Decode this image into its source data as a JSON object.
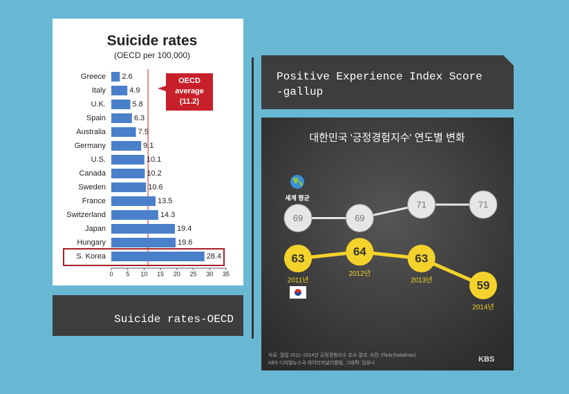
{
  "captions": [
    "Suicide rates-OECD",
    "Positive Experience Index Score\n-gallup"
  ],
  "chart_data": [
    {
      "type": "hbar",
      "title": "Suicide rates",
      "subtitle": "(OECD per 100,000)",
      "categories": [
        "Greece",
        "Italy",
        "U.K.",
        "Spain",
        "Australia",
        "Germany",
        "U.S.",
        "Canada",
        "Sweden",
        "France",
        "Switzerland",
        "Japan",
        "Hungary",
        "S. Korea"
      ],
      "values": [
        2.6,
        4.9,
        5.8,
        6.3,
        7.5,
        9.1,
        10.1,
        10.2,
        10.6,
        13.5,
        14.3,
        19.4,
        19.6,
        28.4
      ],
      "color": "#4a80c9",
      "xlim": [
        0,
        35
      ],
      "xticks": [
        0,
        5,
        10,
        15,
        20,
        25,
        30,
        35
      ],
      "reference": {
        "lines": [
          "OECD",
          "average",
          "(11.2)"
        ],
        "value": 11.2,
        "color": "#c8202a"
      },
      "highlight": 13
    },
    {
      "type": "line",
      "title": "대한민국 '긍정경험지수' 연도별 변화",
      "categories": [
        "2011년",
        "2012년",
        "2013년",
        "2014년"
      ],
      "series": [
        {
          "name": "세계 평균",
          "color": "#e6e6e6",
          "values": [
            69,
            69,
            71,
            71
          ]
        },
        {
          "color": "#f3d22b",
          "values": [
            63,
            64,
            63,
            59
          ]
        }
      ],
      "source": [
        "자료: 갤럽 2011~2014년 긍정경험지수 조사 결과, 사진: Flickr(hatalmas)",
        "KBS 디지털뉴스국 데이터저널리즘팀, 그래픽: 임유나"
      ],
      "logo": "KBS"
    }
  ]
}
